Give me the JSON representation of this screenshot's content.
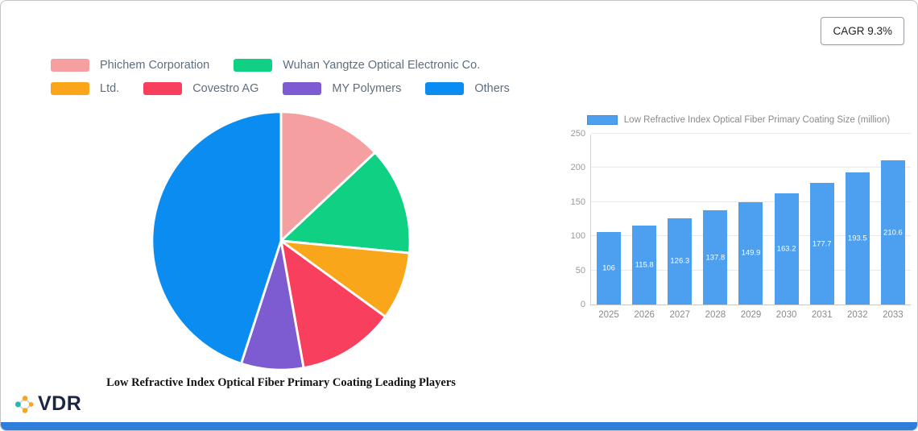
{
  "badge": {
    "label": "CAGR 9.3%"
  },
  "brand": {
    "name": "VDR"
  },
  "colors": {
    "accent_bar": "#2e7ddb",
    "bar_fill": "#4d9ff0",
    "legend_text": "#5f6e7e"
  },
  "chart_data": [
    {
      "type": "pie",
      "title": "Low Refractive Index Optical Fiber Primary Coating Leading Players",
      "legend_position": "top-left",
      "slices": [
        {
          "label": "Phichem Corporation",
          "value": 13,
          "color": "#f59fa0"
        },
        {
          "label": "Wuhan Yangtze Optical Electronic Co.",
          "value": 13.5,
          "color": "#10d183"
        },
        {
          "label": "Ltd.",
          "value": 8.5,
          "color": "#f9a61a"
        },
        {
          "label": "Covestro AG",
          "value": 12.2,
          "color": "#f83f5d"
        },
        {
          "label": "MY Polymers",
          "value": 7.8,
          "color": "#7d5bd1"
        },
        {
          "label": "Others",
          "value": 45,
          "color": "#0a8cf0"
        }
      ]
    },
    {
      "type": "bar",
      "legend_label": "Low Refractive Index Optical Fiber Primary Coating Size (million)",
      "categories": [
        "2025",
        "2026",
        "2027",
        "2028",
        "2029",
        "2030",
        "2031",
        "2032",
        "2033"
      ],
      "values": [
        106,
        115.8,
        126.3,
        137.8,
        149.9,
        163.2,
        177.7,
        193.5,
        210.6
      ],
      "ylim": [
        0,
        250
      ],
      "yticks": [
        0,
        50,
        100,
        150,
        200,
        250
      ],
      "grid": true,
      "legend_position": "top"
    }
  ]
}
